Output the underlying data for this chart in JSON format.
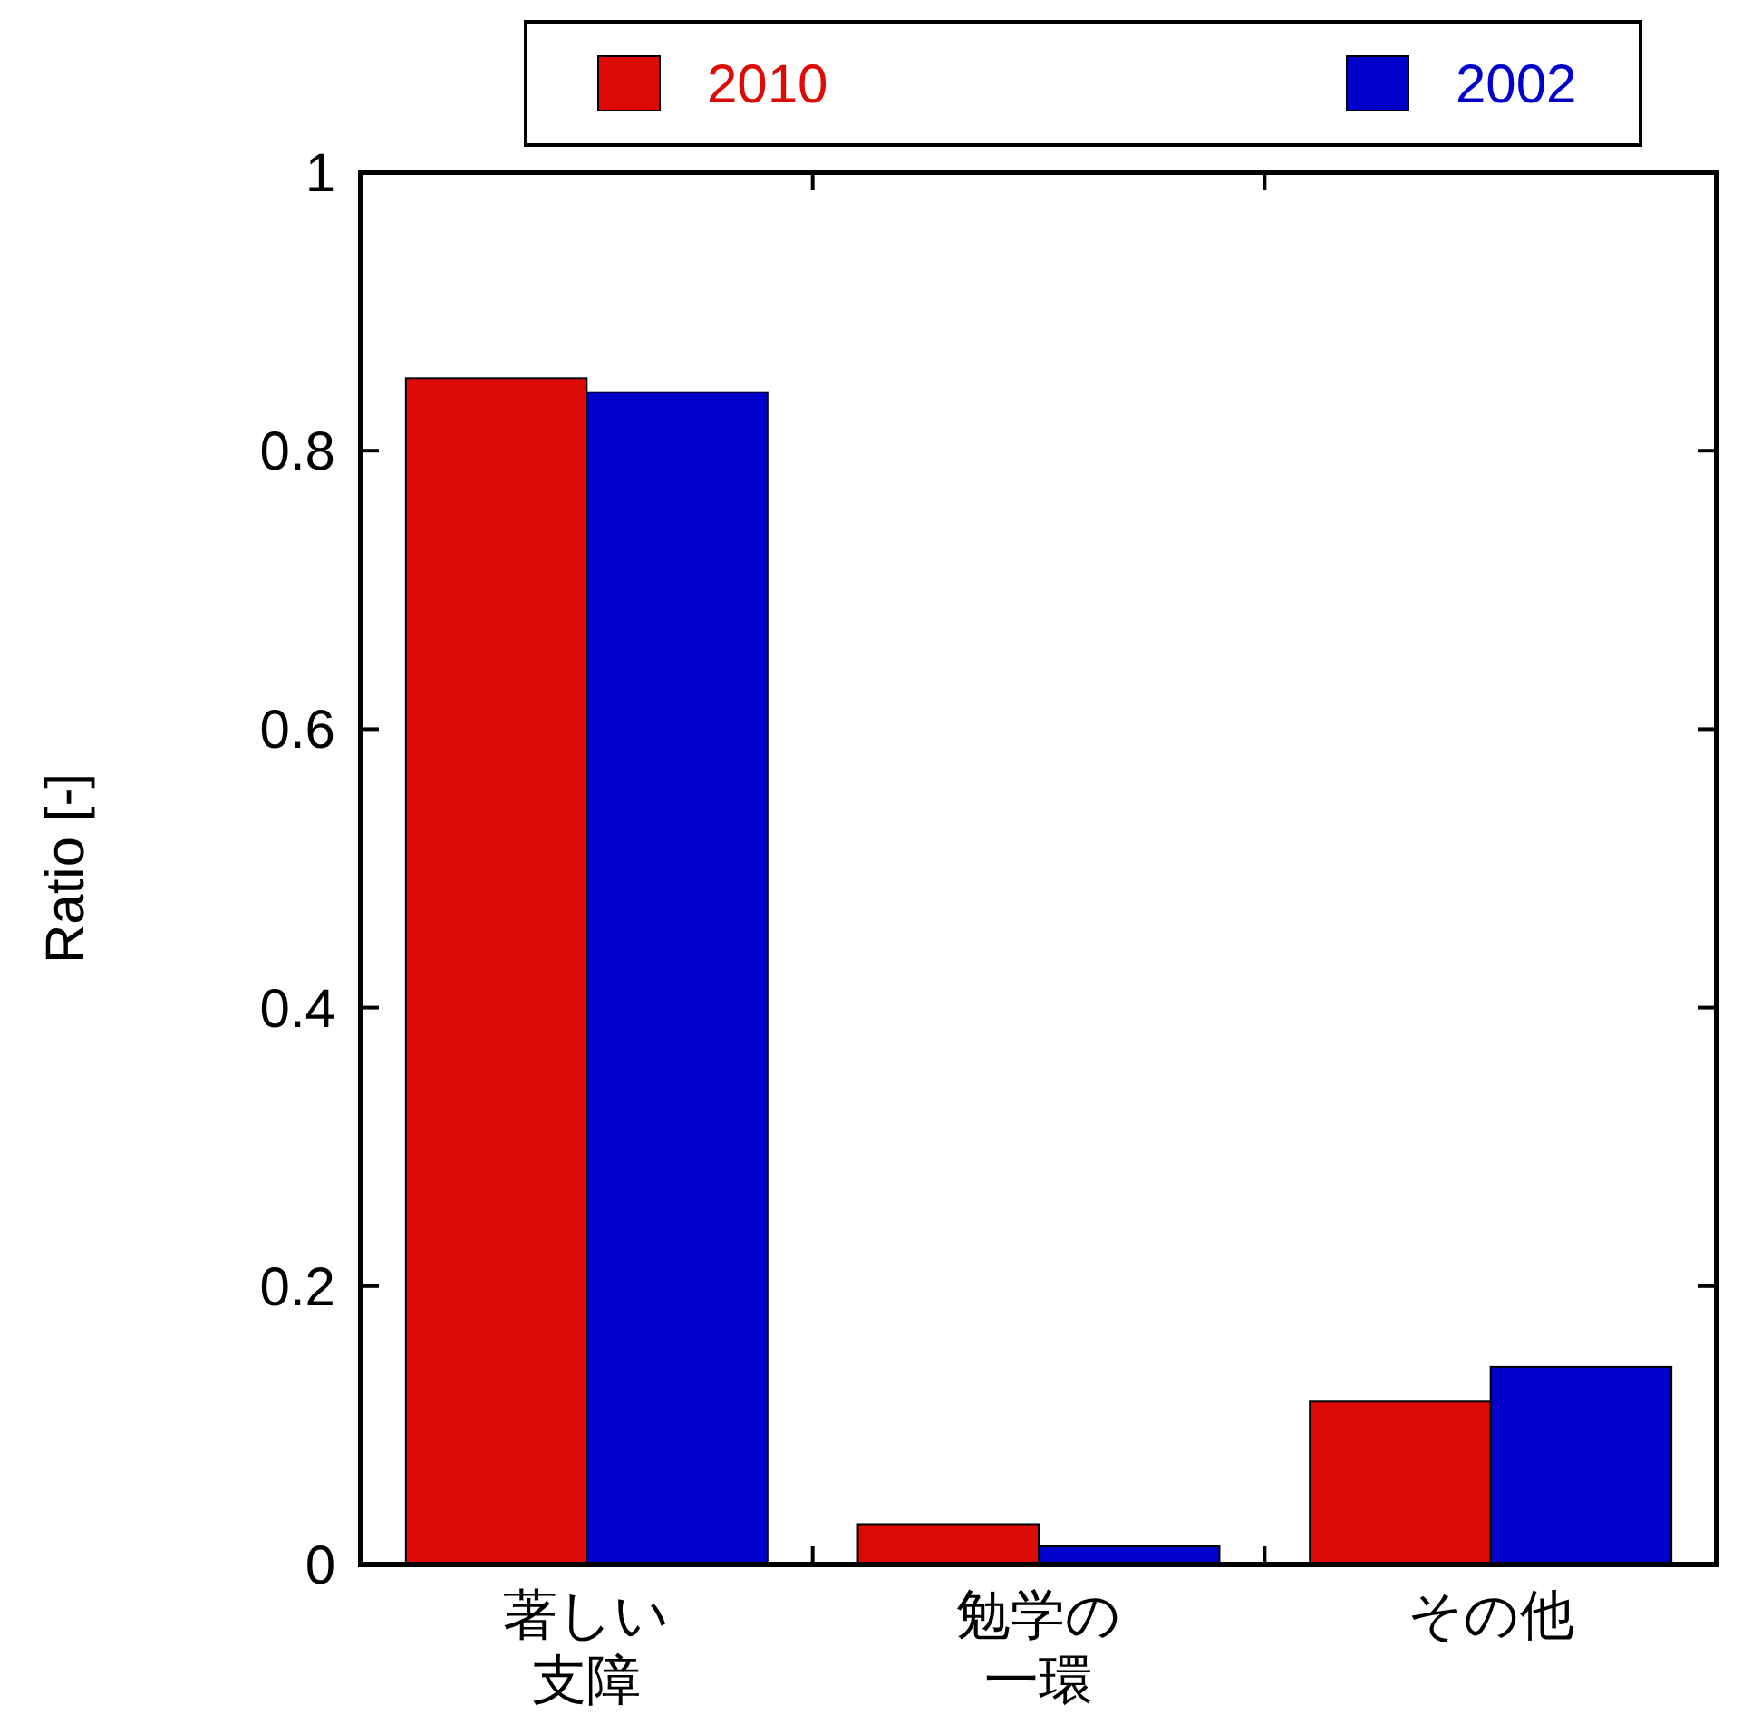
{
  "chart_data": {
    "type": "bar",
    "ylabel": "Ratio [-]",
    "categories": [
      "著しい支障",
      "勉学の一環",
      "その他"
    ],
    "series": [
      {
        "name": "2010",
        "color": "#dd0a06",
        "values": [
          0.852,
          0.029,
          0.117
        ]
      },
      {
        "name": "2002",
        "color": "#0000cc",
        "values": [
          0.842,
          0.013,
          0.142
        ]
      }
    ],
    "ylim": [
      0,
      1
    ],
    "yticks": [
      0,
      0.2,
      0.4,
      0.6,
      0.8,
      1
    ],
    "legend": "top",
    "grid": false
  }
}
